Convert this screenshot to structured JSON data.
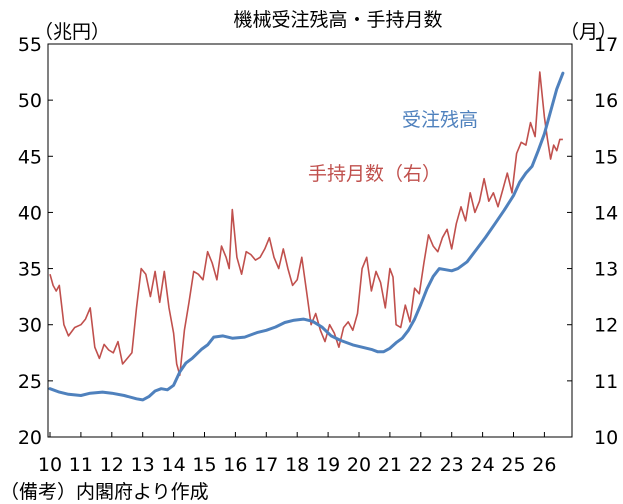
{
  "chart_data": {
    "type": "line",
    "title": "機械受注残高・手持月数",
    "left_unit": "（兆円）",
    "right_unit": "（月）",
    "source": "（備考）内閣府より作成",
    "x_categories": [
      "10",
      "11",
      "12",
      "13",
      "14",
      "15",
      "16",
      "17",
      "18",
      "19",
      "20",
      "21",
      "22",
      "23",
      "24",
      "25",
      "26"
    ],
    "left_axis": {
      "min": 20,
      "max": 55,
      "ticks": [
        20,
        25,
        30,
        35,
        40,
        45,
        50,
        55
      ]
    },
    "right_axis": {
      "min": 10,
      "max": 17,
      "ticks": [
        10,
        11,
        12,
        13,
        14,
        15,
        16,
        17
      ]
    },
    "series": [
      {
        "name": "受注残高",
        "axis": "left",
        "color": "#4f81bd",
        "points": [
          [
            10.0,
            24.3
          ],
          [
            10.3,
            24.0
          ],
          [
            10.6,
            23.8
          ],
          [
            11.0,
            23.7
          ],
          [
            11.3,
            23.9
          ],
          [
            11.7,
            24.0
          ],
          [
            12.0,
            23.9
          ],
          [
            12.4,
            23.7
          ],
          [
            12.8,
            23.4
          ],
          [
            13.0,
            23.3
          ],
          [
            13.2,
            23.6
          ],
          [
            13.4,
            24.1
          ],
          [
            13.6,
            24.3
          ],
          [
            13.8,
            24.2
          ],
          [
            14.0,
            24.6
          ],
          [
            14.2,
            25.8
          ],
          [
            14.4,
            26.6
          ],
          [
            14.6,
            27.0
          ],
          [
            14.9,
            27.8
          ],
          [
            15.1,
            28.2
          ],
          [
            15.3,
            28.9
          ],
          [
            15.6,
            29.0
          ],
          [
            15.9,
            28.8
          ],
          [
            16.3,
            28.9
          ],
          [
            16.7,
            29.3
          ],
          [
            17.0,
            29.5
          ],
          [
            17.3,
            29.8
          ],
          [
            17.6,
            30.2
          ],
          [
            17.9,
            30.4
          ],
          [
            18.2,
            30.5
          ],
          [
            18.5,
            30.3
          ],
          [
            18.8,
            29.8
          ],
          [
            19.1,
            29.0
          ],
          [
            19.4,
            28.6
          ],
          [
            19.8,
            28.2
          ],
          [
            20.1,
            28.0
          ],
          [
            20.4,
            27.8
          ],
          [
            20.6,
            27.6
          ],
          [
            20.8,
            27.6
          ],
          [
            21.0,
            27.9
          ],
          [
            21.2,
            28.4
          ],
          [
            21.4,
            28.8
          ],
          [
            21.6,
            29.5
          ],
          [
            21.8,
            30.5
          ],
          [
            22.0,
            31.8
          ],
          [
            22.2,
            33.2
          ],
          [
            22.4,
            34.3
          ],
          [
            22.6,
            35.0
          ],
          [
            22.8,
            34.9
          ],
          [
            23.0,
            34.8
          ],
          [
            23.2,
            35.0
          ],
          [
            23.5,
            35.6
          ],
          [
            23.8,
            36.7
          ],
          [
            24.1,
            37.8
          ],
          [
            24.4,
            39.0
          ],
          [
            24.7,
            40.2
          ],
          [
            25.0,
            41.5
          ],
          [
            25.2,
            42.7
          ],
          [
            25.4,
            43.5
          ],
          [
            25.6,
            44.1
          ],
          [
            25.8,
            45.5
          ],
          [
            26.0,
            47.0
          ],
          [
            26.2,
            49.0
          ],
          [
            26.4,
            51.0
          ],
          [
            26.6,
            52.4
          ]
        ]
      },
      {
        "name": "手持月数（右）",
        "axis": "right",
        "color": "#c0504d",
        "points": [
          [
            10.0,
            12.9
          ],
          [
            10.1,
            12.7
          ],
          [
            10.2,
            12.6
          ],
          [
            10.3,
            12.7
          ],
          [
            10.45,
            12.0
          ],
          [
            10.6,
            11.8
          ],
          [
            10.8,
            11.95
          ],
          [
            11.0,
            12.0
          ],
          [
            11.15,
            12.1
          ],
          [
            11.3,
            12.3
          ],
          [
            11.45,
            11.6
          ],
          [
            11.6,
            11.4
          ],
          [
            11.75,
            11.65
          ],
          [
            11.9,
            11.55
          ],
          [
            12.05,
            11.5
          ],
          [
            12.2,
            11.7
          ],
          [
            12.35,
            11.3
          ],
          [
            12.5,
            11.4
          ],
          [
            12.65,
            11.5
          ],
          [
            12.8,
            12.3
          ],
          [
            12.95,
            13.0
          ],
          [
            13.1,
            12.9
          ],
          [
            13.25,
            12.5
          ],
          [
            13.4,
            12.95
          ],
          [
            13.55,
            12.4
          ],
          [
            13.7,
            12.95
          ],
          [
            13.85,
            12.3
          ],
          [
            14.0,
            11.85
          ],
          [
            14.1,
            11.3
          ],
          [
            14.2,
            11.1
          ],
          [
            14.35,
            11.9
          ],
          [
            14.5,
            12.4
          ],
          [
            14.65,
            12.95
          ],
          [
            14.8,
            12.9
          ],
          [
            14.95,
            12.8
          ],
          [
            15.1,
            13.3
          ],
          [
            15.25,
            13.1
          ],
          [
            15.4,
            12.8
          ],
          [
            15.55,
            13.4
          ],
          [
            15.7,
            13.2
          ],
          [
            15.8,
            13.0
          ],
          [
            15.9,
            14.05
          ],
          [
            16.05,
            13.2
          ],
          [
            16.2,
            12.9
          ],
          [
            16.35,
            13.3
          ],
          [
            16.5,
            13.25
          ],
          [
            16.65,
            13.15
          ],
          [
            16.8,
            13.2
          ],
          [
            16.95,
            13.35
          ],
          [
            17.1,
            13.55
          ],
          [
            17.25,
            13.2
          ],
          [
            17.4,
            13.0
          ],
          [
            17.55,
            13.35
          ],
          [
            17.7,
            13.0
          ],
          [
            17.85,
            12.7
          ],
          [
            18.0,
            12.8
          ],
          [
            18.15,
            13.2
          ],
          [
            18.3,
            12.6
          ],
          [
            18.45,
            12.0
          ],
          [
            18.6,
            12.2
          ],
          [
            18.75,
            11.9
          ],
          [
            18.9,
            11.7
          ],
          [
            19.05,
            12.0
          ],
          [
            19.2,
            11.85
          ],
          [
            19.35,
            11.6
          ],
          [
            19.5,
            11.95
          ],
          [
            19.65,
            12.05
          ],
          [
            19.8,
            11.9
          ],
          [
            19.95,
            12.2
          ],
          [
            20.1,
            13.0
          ],
          [
            20.25,
            13.2
          ],
          [
            20.4,
            12.6
          ],
          [
            20.55,
            12.95
          ],
          [
            20.7,
            12.75
          ],
          [
            20.85,
            12.3
          ],
          [
            21.0,
            13.0
          ],
          [
            21.1,
            12.85
          ],
          [
            21.2,
            12.0
          ],
          [
            21.35,
            11.95
          ],
          [
            21.5,
            12.35
          ],
          [
            21.65,
            12.05
          ],
          [
            21.8,
            12.65
          ],
          [
            21.95,
            12.55
          ],
          [
            22.1,
            13.1
          ],
          [
            22.25,
            13.6
          ],
          [
            22.4,
            13.4
          ],
          [
            22.55,
            13.3
          ],
          [
            22.7,
            13.55
          ],
          [
            22.85,
            13.7
          ],
          [
            23.0,
            13.35
          ],
          [
            23.15,
            13.8
          ],
          [
            23.3,
            14.1
          ],
          [
            23.45,
            13.85
          ],
          [
            23.6,
            14.35
          ],
          [
            23.75,
            14.0
          ],
          [
            23.9,
            14.2
          ],
          [
            24.05,
            14.6
          ],
          [
            24.2,
            14.2
          ],
          [
            24.35,
            14.35
          ],
          [
            24.5,
            14.1
          ],
          [
            24.65,
            14.4
          ],
          [
            24.8,
            14.7
          ],
          [
            24.95,
            14.35
          ],
          [
            25.1,
            15.05
          ],
          [
            25.25,
            15.25
          ],
          [
            25.4,
            15.2
          ],
          [
            25.55,
            15.6
          ],
          [
            25.7,
            15.35
          ],
          [
            25.85,
            16.5
          ],
          [
            26.0,
            15.7
          ],
          [
            26.1,
            15.3
          ],
          [
            26.2,
            14.95
          ],
          [
            26.3,
            15.2
          ],
          [
            26.4,
            15.1
          ],
          [
            26.5,
            15.3
          ],
          [
            26.6,
            15.3
          ]
        ]
      }
    ],
    "series_labels": [
      {
        "text": "受注残高",
        "color": "#4f81bd"
      },
      {
        "text": "手持月数（右）",
        "color": "#c0504d"
      }
    ]
  }
}
